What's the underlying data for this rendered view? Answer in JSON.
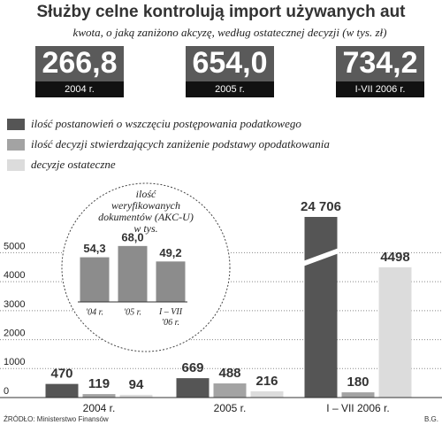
{
  "header": {
    "title": "Służby celne kontrolują import używanych aut",
    "subtitle": "kwota, o jaką zaniżono akcyzę, według ostatecznej decyzji (w tys. zł)"
  },
  "highlights": [
    {
      "amount": "266,8",
      "period": "2004 r."
    },
    {
      "amount": "654,0",
      "period": "2005 r."
    },
    {
      "amount": "734,2",
      "period": "I-VII 2006 r."
    }
  ],
  "chart_data": [
    {
      "type": "bar",
      "categories": [
        "2004 r.",
        "2005 r.",
        "I – VII 2006 r."
      ],
      "series": [
        {
          "name": "ilość postanowień o wszczęciu postępowania podatkowego",
          "color": "#555555",
          "values": [
            470,
            669,
            24706
          ],
          "value_labels": [
            "470",
            "669",
            "24 706"
          ]
        },
        {
          "name": "ilość decyzji stwierdzających zaniżenie podstawy opodatkowania",
          "color": "#a3a3a3",
          "values": [
            119,
            488,
            180
          ]
        },
        {
          "name": "decyzje ostateczne",
          "color": "#dcdcdc",
          "values": [
            94,
            216,
            4498
          ]
        }
      ],
      "ylim": [
        0,
        7000
      ],
      "yticks": [
        0,
        1000,
        2000,
        3000,
        4000,
        5000
      ],
      "grid": true,
      "axis_break": true
    },
    {
      "type": "bar",
      "title": "ilość weryfikowanych dokumentów (AKC-U) w tys.",
      "categories": [
        "'04 r.",
        "'05 r.",
        "I – VII '06 r."
      ],
      "values": [
        54.3,
        68.0,
        49.2
      ],
      "value_labels": [
        "54,3",
        "68,0",
        "49,2"
      ],
      "color": "#8c8c8c",
      "ylim": [
        0,
        70
      ]
    }
  ],
  "footer": {
    "source": "ŹRÓDŁO: Ministerstwo Finansów",
    "author": "B.G."
  }
}
